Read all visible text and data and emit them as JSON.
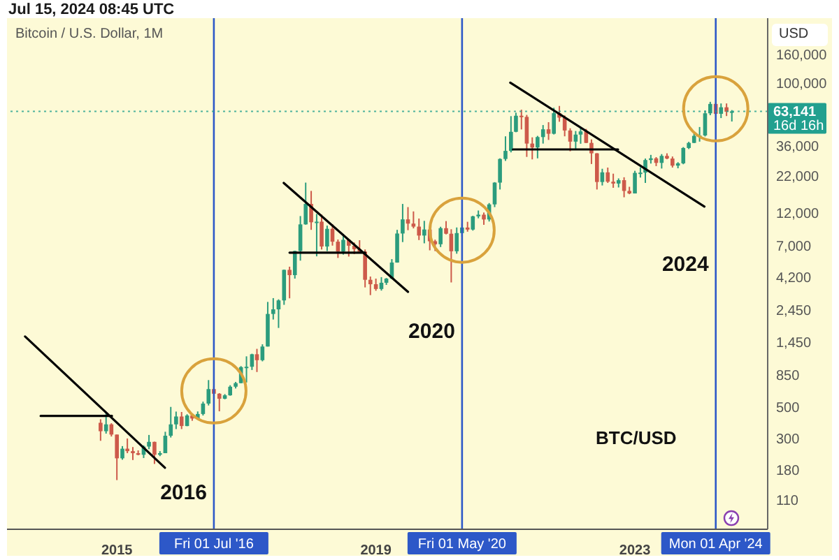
{
  "chart_data": {
    "type": "candlestick",
    "title": "Bitcoin / U.S. Dollar, 1M",
    "ylabel": "USD",
    "log": true,
    "xlim": [
      "2013-04-21",
      "2025-01-19"
    ],
    "xticks": [
      "2015",
      "2019",
      "2023"
    ],
    "ylim": [
      68,
      290000
    ],
    "yticks": [
      110,
      180,
      300,
      500,
      850,
      {
        "value": 1450,
        "label": "1,450"
      },
      {
        "value": 2450,
        "label": "2,450"
      },
      {
        "value": 4200,
        "label": "4,200"
      },
      {
        "value": 7000,
        "label": "7,000"
      },
      {
        "value": 12000,
        "label": "12,000"
      },
      {
        "value": 22000,
        "label": "22,000"
      },
      {
        "value": 36000,
        "label": "36,000"
      },
      {
        "value": 100000,
        "label": "100,000"
      },
      {
        "value": 160000,
        "label": "160,000"
      }
    ],
    "x": [
      "2014-10",
      "2014-11",
      "2014-12",
      "2015-01",
      "2015-02",
      "2015-03",
      "2015-04",
      "2015-05",
      "2015-06",
      "2015-07",
      "2015-08",
      "2015-09",
      "2015-10",
      "2015-11",
      "2015-12",
      "2016-01",
      "2016-02",
      "2016-03",
      "2016-04",
      "2016-05",
      "2016-06",
      "2016-07",
      "2016-08",
      "2016-09",
      "2016-10",
      "2016-11",
      "2016-12",
      "2017-01",
      "2017-02",
      "2017-03",
      "2017-04",
      "2017-05",
      "2017-06",
      "2017-07",
      "2017-08",
      "2017-09",
      "2017-10",
      "2017-11",
      "2017-12",
      "2018-01",
      "2018-02",
      "2018-03",
      "2018-04",
      "2018-05",
      "2018-06",
      "2018-07",
      "2018-08",
      "2018-09",
      "2018-10",
      "2018-11",
      "2018-12",
      "2019-01",
      "2019-02",
      "2019-03",
      "2019-04",
      "2019-05",
      "2019-06",
      "2019-07",
      "2019-08",
      "2019-09",
      "2019-10",
      "2019-11",
      "2019-12",
      "2020-01",
      "2020-02",
      "2020-03",
      "2020-04",
      "2020-05",
      "2020-06",
      "2020-07",
      "2020-08",
      "2020-09",
      "2020-10",
      "2020-11",
      "2020-12",
      "2021-01",
      "2021-02",
      "2021-03",
      "2021-04",
      "2021-05",
      "2021-06",
      "2021-07",
      "2021-08",
      "2021-09",
      "2021-10",
      "2021-11",
      "2021-12",
      "2022-01",
      "2022-02",
      "2022-03",
      "2022-04",
      "2022-05",
      "2022-06",
      "2022-07",
      "2022-08",
      "2022-09",
      "2022-10",
      "2022-11",
      "2022-12",
      "2023-01",
      "2023-02",
      "2023-03",
      "2023-04",
      "2023-05",
      "2023-06",
      "2023-07",
      "2023-08",
      "2023-09",
      "2023-10",
      "2023-11",
      "2023-12",
      "2024-01",
      "2024-02",
      "2024-03",
      "2024-04",
      "2024-05",
      "2024-06",
      "2024-07"
    ],
    "ohlc": [
      [
        388,
        411,
        289,
        338
      ],
      [
        338,
        457,
        325,
        378
      ],
      [
        378,
        385,
        310,
        320
      ],
      [
        320,
        320,
        152,
        217
      ],
      [
        217,
        265,
        212,
        254
      ],
      [
        254,
        300,
        236,
        244
      ],
      [
        244,
        261,
        211,
        236
      ],
      [
        236,
        247,
        228,
        230
      ],
      [
        230,
        268,
        218,
        263
      ],
      [
        263,
        318,
        252,
        284
      ],
      [
        284,
        285,
        198,
        230
      ],
      [
        230,
        244,
        225,
        236
      ],
      [
        236,
        335,
        236,
        314
      ],
      [
        314,
        503,
        305,
        378
      ],
      [
        378,
        466,
        350,
        430
      ],
      [
        430,
        463,
        350,
        368
      ],
      [
        368,
        446,
        367,
        437
      ],
      [
        437,
        438,
        401,
        416
      ],
      [
        416,
        467,
        414,
        448
      ],
      [
        448,
        548,
        437,
        531
      ],
      [
        531,
        780,
        515,
        673
      ],
      [
        673,
        704,
        606,
        624
      ],
      [
        624,
        630,
        468,
        575
      ],
      [
        575,
        620,
        570,
        608
      ],
      [
        608,
        717,
        604,
        700
      ],
      [
        700,
        757,
        680,
        742
      ],
      [
        742,
        980,
        741,
        964
      ],
      [
        964,
        1150,
        750,
        970
      ],
      [
        970,
        1200,
        920,
        1190
      ],
      [
        1190,
        1300,
        890,
        1080
      ],
      [
        1080,
        1400,
        1060,
        1350
      ],
      [
        1350,
        2800,
        1350,
        2300
      ],
      [
        2300,
        2980,
        2100,
        2480
      ],
      [
        2480,
        2920,
        1830,
        2870
      ],
      [
        2870,
        4750,
        2670,
        4730
      ],
      [
        4730,
        4980,
        2970,
        4340
      ],
      [
        4340,
        6470,
        4100,
        6440
      ],
      [
        6440,
        11400,
        5500,
        9950
      ],
      [
        9950,
        19700,
        9900,
        13900
      ],
      [
        13900,
        17200,
        9100,
        10300
      ],
      [
        10300,
        11800,
        5900,
        10400
      ],
      [
        10400,
        11700,
        6600,
        6930
      ],
      [
        6930,
        9750,
        6430,
        9250
      ],
      [
        9250,
        9990,
        7030,
        7500
      ],
      [
        7500,
        7770,
        5750,
        6390
      ],
      [
        6390,
        8500,
        6070,
        7730
      ],
      [
        7730,
        7760,
        5880,
        7020
      ],
      [
        7020,
        7400,
        6120,
        6630
      ],
      [
        6630,
        7680,
        6200,
        6370
      ],
      [
        6370,
        6600,
        3550,
        4020
      ],
      [
        4020,
        4240,
        3130,
        3740
      ],
      [
        3740,
        4100,
        3360,
        3460
      ],
      [
        3460,
        4200,
        3370,
        3830
      ],
      [
        3830,
        4140,
        3700,
        4100
      ],
      [
        4100,
        5640,
        4070,
        5330
      ],
      [
        5330,
        9100,
        5320,
        8570
      ],
      [
        8570,
        13900,
        7450,
        10800
      ],
      [
        10800,
        13200,
        9050,
        10080
      ],
      [
        10080,
        12300,
        9320,
        9590
      ],
      [
        9590,
        10950,
        7700,
        8290
      ],
      [
        8290,
        10540,
        7300,
        9150
      ],
      [
        9150,
        9520,
        6510,
        7550
      ],
      [
        7550,
        7750,
        6430,
        7190
      ],
      [
        7190,
        9570,
        6870,
        9350
      ],
      [
        9350,
        10500,
        8450,
        8540
      ],
      [
        8540,
        9190,
        3850,
        6410
      ],
      [
        6410,
        9460,
        6160,
        8630
      ],
      [
        8630,
        10080,
        8120,
        9450
      ],
      [
        9450,
        10380,
        8830,
        9140
      ],
      [
        9140,
        11450,
        8990,
        11350
      ],
      [
        11350,
        12480,
        10990,
        11660
      ],
      [
        11660,
        12080,
        9880,
        10780
      ],
      [
        10780,
        14100,
        10430,
        13800
      ],
      [
        13800,
        19850,
        13200,
        19700
      ],
      [
        19700,
        29300,
        17600,
        29000
      ],
      [
        29000,
        42000,
        28100,
        33100
      ],
      [
        33100,
        58400,
        32300,
        45200
      ],
      [
        45200,
        61800,
        44900,
        58800
      ],
      [
        58800,
        64900,
        47000,
        57700
      ],
      [
        57700,
        59600,
        30000,
        37300
      ],
      [
        37300,
        41300,
        28800,
        35000
      ],
      [
        35000,
        42300,
        29300,
        41500
      ],
      [
        41500,
        50500,
        37300,
        47100
      ],
      [
        47100,
        52900,
        39600,
        43800
      ],
      [
        43800,
        67000,
        43300,
        61300
      ],
      [
        61300,
        69000,
        53300,
        57000
      ],
      [
        57000,
        59100,
        42000,
        46200
      ],
      [
        46200,
        47900,
        32900,
        38500
      ],
      [
        38500,
        45800,
        34300,
        43200
      ],
      [
        43200,
        48200,
        37200,
        45500
      ],
      [
        45500,
        47400,
        37600,
        37700
      ],
      [
        37700,
        39900,
        26700,
        31800
      ],
      [
        31800,
        31900,
        17600,
        19900
      ],
      [
        19900,
        24700,
        18800,
        23300
      ],
      [
        23300,
        25200,
        19600,
        20000
      ],
      [
        20000,
        22800,
        18100,
        19400
      ],
      [
        19400,
        21100,
        18200,
        20500
      ],
      [
        20500,
        21500,
        15500,
        17200
      ],
      [
        17200,
        18400,
        16300,
        16500
      ],
      [
        16500,
        23900,
        16500,
        23100
      ],
      [
        23100,
        25300,
        21400,
        23200
      ],
      [
        23200,
        29200,
        19600,
        28500
      ],
      [
        28500,
        31000,
        26900,
        29300
      ],
      [
        29300,
        29900,
        25800,
        27200
      ],
      [
        27200,
        31400,
        24800,
        30500
      ],
      [
        30500,
        31800,
        28900,
        29200
      ],
      [
        29200,
        30200,
        25200,
        26000
      ],
      [
        26000,
        27500,
        24900,
        27000
      ],
      [
        27000,
        35200,
        26600,
        34700
      ],
      [
        34700,
        38400,
        34100,
        37700
      ],
      [
        37700,
        44700,
        37600,
        42300
      ],
      [
        42300,
        48900,
        38500,
        42600
      ],
      [
        42600,
        64000,
        41900,
        61200
      ],
      [
        61200,
        73800,
        59300,
        71300
      ],
      [
        71300,
        72800,
        59600,
        60700
      ],
      [
        60700,
        71900,
        56600,
        67500
      ],
      [
        67500,
        71900,
        58500,
        62800
      ],
      [
        62800,
        64500,
        53500,
        63141
      ]
    ],
    "series": [
      {
        "type": "line",
        "color": "#000000",
        "x": [
          "2013-08-01",
          "2015-09-29"
        ],
        "values": [
          1590,
          186
        ]
      },
      {
        "type": "line",
        "color": "#000000",
        "x": [
          "2013-10-28",
          "2014-12-04"
        ],
        "values": [
          434,
          434
        ]
      },
      {
        "type": "line",
        "color": "#000000",
        "x": [
          "2017-07-30",
          "2019-07-01"
        ],
        "values": [
          19600,
          3300
        ]
      },
      {
        "type": "line",
        "color": "#000000",
        "x": [
          "2017-09-01",
          "2018-11-01"
        ],
        "values": [
          6270,
          6270
        ]
      },
      {
        "type": "line",
        "color": "#000000",
        "x": [
          "2021-01-28",
          "2024-01-28"
        ],
        "values": [
          101000,
          13300
        ]
      },
      {
        "type": "line",
        "color": "#000000",
        "x": [
          "2021-02-12",
          "2022-09-28"
        ],
        "values": [
          33900,
          33900
        ]
      }
    ],
    "ref_lines": [
      {
        "axis": "x",
        "value": "2016-07-01",
        "label": "Fri 01 Jul '16",
        "color": "#2d58c8"
      },
      {
        "axis": "x",
        "value": "2020-05-01",
        "label": "Fri 01 May '20",
        "color": "#2d58c8"
      },
      {
        "axis": "x",
        "value": "2024-04-01",
        "label": "Mon 01 Apr '24",
        "color": "#2d58c8"
      },
      {
        "axis": "y",
        "value": 63141,
        "label": "63,141",
        "color": "#22a08f",
        "line_style": "dotted"
      }
    ],
    "annotations": [
      "Jul 15, 2024 08:45 UTC",
      "BTC/USD",
      "16d 16h",
      {
        "text": "2016",
        "x": "2016-07-01",
        "y": 124
      },
      {
        "text": "2020",
        "x": "2020-05-01",
        "y": 1750
      },
      {
        "text": "2024",
        "x": "2024-04-01",
        "y": 5200
      }
    ]
  }
}
